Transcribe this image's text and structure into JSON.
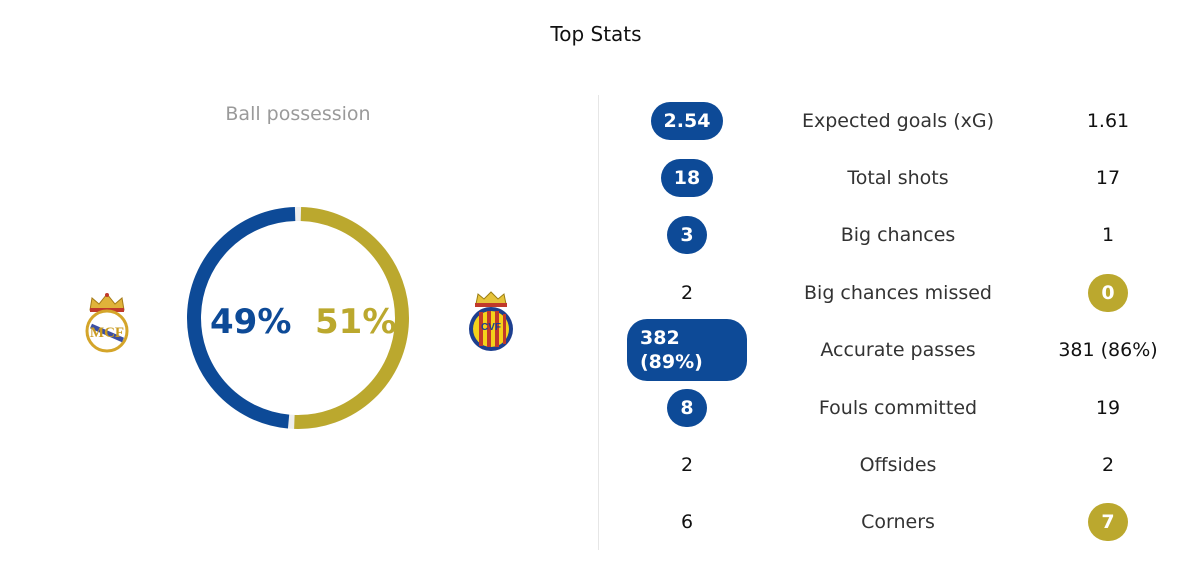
{
  "title": "Top Stats",
  "possession": {
    "label": "Ball possession",
    "home_pct": "49%",
    "away_pct": "51%",
    "home_fraction": 0.49,
    "away_fraction": 0.51
  },
  "colors": {
    "home": "#0d4a97",
    "away": "#bba82e"
  },
  "teams": {
    "home_crest": "real-madrid-crest",
    "away_crest": "villarreal-crest"
  },
  "stats": [
    {
      "label": "Expected goals (xG)",
      "home": "2.54",
      "away": "1.61",
      "highlight": "home"
    },
    {
      "label": "Total shots",
      "home": "18",
      "away": "17",
      "highlight": "home"
    },
    {
      "label": "Big chances",
      "home": "3",
      "away": "1",
      "highlight": "home"
    },
    {
      "label": "Big chances missed",
      "home": "2",
      "away": "0",
      "highlight": "away"
    },
    {
      "label": "Accurate passes",
      "home": "382 (89%)",
      "away": "381 (86%)",
      "highlight": "home"
    },
    {
      "label": "Fouls committed",
      "home": "8",
      "away": "19",
      "highlight": "home"
    },
    {
      "label": "Offsides",
      "home": "2",
      "away": "2",
      "highlight": "none"
    },
    {
      "label": "Corners",
      "home": "6",
      "away": "7",
      "highlight": "away"
    }
  ]
}
